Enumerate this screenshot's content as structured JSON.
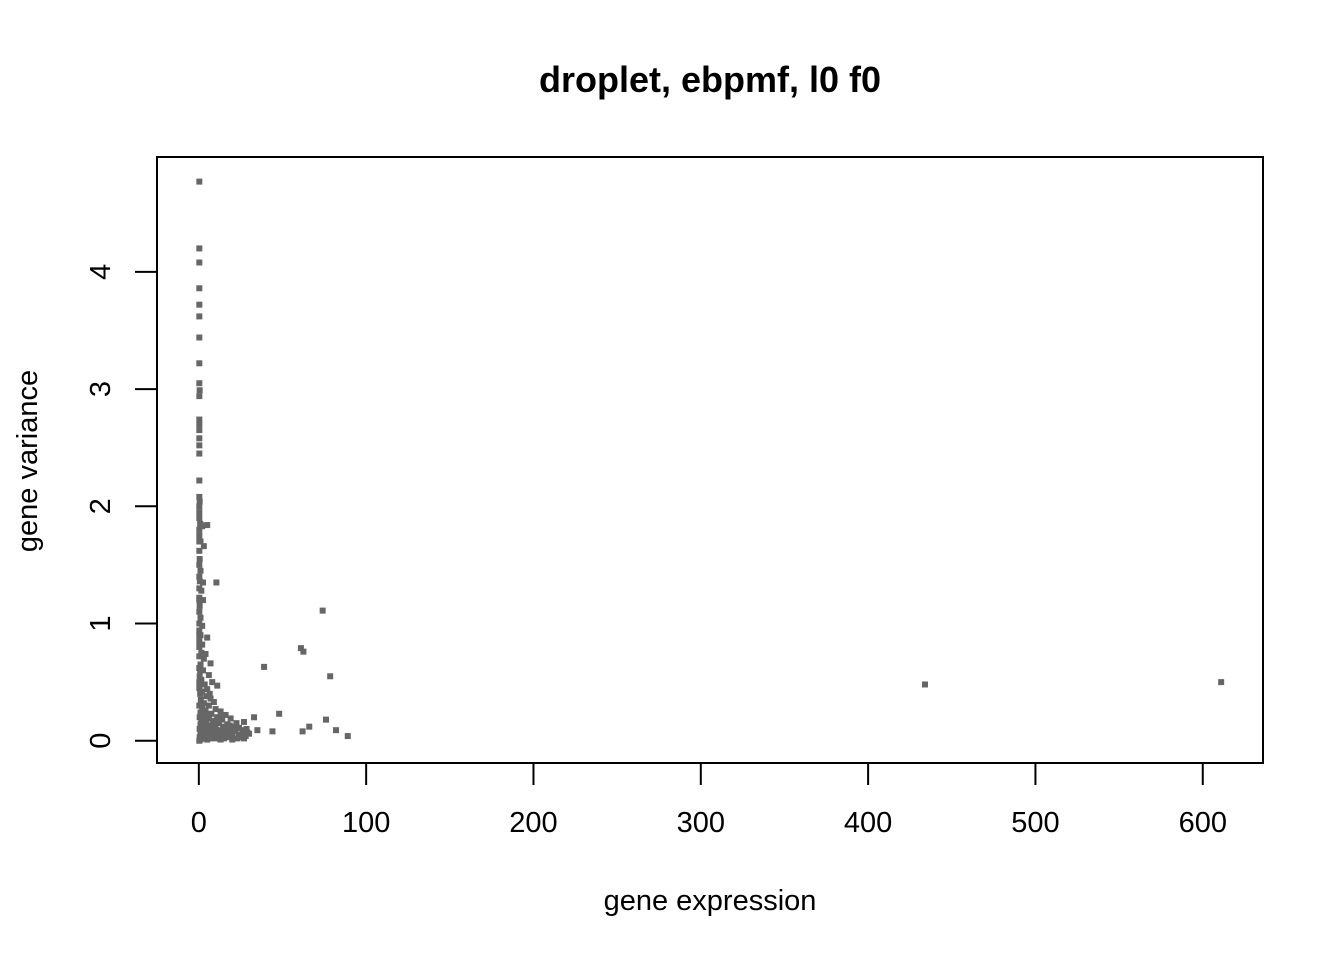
{
  "chart_data": {
    "type": "scatter",
    "title": "droplet, ebpmf, l0 f0",
    "xlabel": "gene expression",
    "ylabel": "gene variance",
    "xlim": [
      -25,
      636
    ],
    "ylim": [
      -0.19,
      4.98
    ],
    "xticks": [
      0,
      100,
      200,
      300,
      400,
      500,
      600
    ],
    "xtick_labels": [
      "0",
      "100",
      "200",
      "300",
      "400",
      "500",
      "600"
    ],
    "yticks": [
      0,
      1,
      2,
      3,
      4
    ],
    "ytick_labels": [
      "0",
      "1",
      "2",
      "3",
      "4"
    ],
    "grid": false,
    "point_color": "#666666",
    "points": [
      [
        0.3,
        4.77
      ],
      [
        0.3,
        4.2
      ],
      [
        0.3,
        4.08
      ],
      [
        0.3,
        3.86
      ],
      [
        0.3,
        3.72
      ],
      [
        0.3,
        3.62
      ],
      [
        0.3,
        3.44
      ],
      [
        0.3,
        3.22
      ],
      [
        0.3,
        3.05
      ],
      [
        0.5,
        2.99
      ],
      [
        0.3,
        2.94
      ],
      [
        0.3,
        2.74
      ],
      [
        0.3,
        2.7
      ],
      [
        0.3,
        2.65
      ],
      [
        0.3,
        2.58
      ],
      [
        0.3,
        2.52
      ],
      [
        0.3,
        2.45
      ],
      [
        0.3,
        2.22
      ],
      [
        0.3,
        2.08
      ],
      [
        0.5,
        2.04
      ],
      [
        0.3,
        2.0
      ],
      [
        0.3,
        1.95
      ],
      [
        0.3,
        1.9
      ],
      [
        0.8,
        1.85
      ],
      [
        1.2,
        1.84
      ],
      [
        2.0,
        1.83
      ],
      [
        5.0,
        1.84
      ],
      [
        0.3,
        1.8
      ],
      [
        0.3,
        1.75
      ],
      [
        0.3,
        1.7
      ],
      [
        1.0,
        1.7
      ],
      [
        3.0,
        1.66
      ],
      [
        0.3,
        1.62
      ],
      [
        0.5,
        1.55
      ],
      [
        0.3,
        1.5
      ],
      [
        1.0,
        1.45
      ],
      [
        0.3,
        1.4
      ],
      [
        0.6,
        1.36
      ],
      [
        2.5,
        1.35
      ],
      [
        10.5,
        1.35
      ],
      [
        0.3,
        1.3
      ],
      [
        1.5,
        1.28
      ],
      [
        0.3,
        1.22
      ],
      [
        2.5,
        1.2
      ],
      [
        0.5,
        1.15
      ],
      [
        0.3,
        1.1
      ],
      [
        1.0,
        1.05
      ],
      [
        0.3,
        1.0
      ],
      [
        2.0,
        0.98
      ],
      [
        0.3,
        0.94
      ],
      [
        1.0,
        0.9
      ],
      [
        5.0,
        0.88
      ],
      [
        0.3,
        0.85
      ],
      [
        2.0,
        0.82
      ],
      [
        0.3,
        0.8
      ],
      [
        1.5,
        0.75
      ],
      [
        4.0,
        0.74
      ],
      [
        0.3,
        0.72
      ],
      [
        3.0,
        0.7
      ],
      [
        7.0,
        0.66
      ],
      [
        1.0,
        0.65
      ],
      [
        0.3,
        0.62
      ],
      [
        2.5,
        0.6
      ],
      [
        6.0,
        0.56
      ],
      [
        0.5,
        0.55
      ],
      [
        1.5,
        0.52
      ],
      [
        8.0,
        0.5
      ],
      [
        3.5,
        0.48
      ],
      [
        11.0,
        0.47
      ],
      [
        0.3,
        0.45
      ],
      [
        5.0,
        0.44
      ],
      [
        2.0,
        0.42
      ],
      [
        0.8,
        0.4
      ],
      [
        4.5,
        0.38
      ],
      [
        7.0,
        0.36
      ],
      [
        1.2,
        0.35
      ],
      [
        9.0,
        0.33
      ],
      [
        3.0,
        0.32
      ],
      [
        0.3,
        0.3
      ],
      [
        6.0,
        0.3
      ],
      [
        2.0,
        0.28
      ],
      [
        10.0,
        0.27
      ],
      [
        4.0,
        0.26
      ],
      [
        13.0,
        0.25
      ],
      [
        1.0,
        0.24
      ],
      [
        7.5,
        0.23
      ],
      [
        16.0,
        0.22
      ],
      [
        3.0,
        0.21
      ],
      [
        11.0,
        0.2
      ],
      [
        0.5,
        0.2
      ],
      [
        6.0,
        0.19
      ],
      [
        19.0,
        0.19
      ],
      [
        14.0,
        0.18
      ],
      [
        2.0,
        0.18
      ],
      [
        9.0,
        0.17
      ],
      [
        27.0,
        0.16
      ],
      [
        4.0,
        0.16
      ],
      [
        12.0,
        0.15
      ],
      [
        17.0,
        0.14
      ],
      [
        1.0,
        0.14
      ],
      [
        7.0,
        0.13
      ],
      [
        21.0,
        0.12
      ],
      [
        3.0,
        0.12
      ],
      [
        15.0,
        0.12
      ],
      [
        24.0,
        0.11
      ],
      [
        10.0,
        0.11
      ],
      [
        0.5,
        0.1
      ],
      [
        5.0,
        0.1
      ],
      [
        18.0,
        0.1
      ],
      [
        26.0,
        0.09
      ],
      [
        13.0,
        0.09
      ],
      [
        2.0,
        0.08
      ],
      [
        8.0,
        0.08
      ],
      [
        22.0,
        0.08
      ],
      [
        16.0,
        0.07
      ],
      [
        29.0,
        0.07
      ],
      [
        4.0,
        0.07
      ],
      [
        11.0,
        0.06
      ],
      [
        19.0,
        0.06
      ],
      [
        1.0,
        0.06
      ],
      [
        24.0,
        0.05
      ],
      [
        6.0,
        0.05
      ],
      [
        14.0,
        0.05
      ],
      [
        28.0,
        0.04
      ],
      [
        9.0,
        0.04
      ],
      [
        20.0,
        0.04
      ],
      [
        3.0,
        0.04
      ],
      [
        12.0,
        0.03
      ],
      [
        25.0,
        0.03
      ],
      [
        17.0,
        0.03
      ],
      [
        0.5,
        0.03
      ],
      [
        7.0,
        0.02
      ],
      [
        23.0,
        0.02
      ],
      [
        15.0,
        0.02
      ],
      [
        2.0,
        0.02
      ],
      [
        10.0,
        0.02
      ],
      [
        27.0,
        0.02
      ],
      [
        0.3,
        0.0
      ],
      [
        1.0,
        0.01
      ],
      [
        5.0,
        0.01
      ],
      [
        13.0,
        0.01
      ],
      [
        20.0,
        0.01
      ],
      [
        0.3,
        0.5
      ],
      [
        0.3,
        0.9
      ],
      [
        0.3,
        1.2
      ],
      [
        0.5,
        0.3
      ],
      [
        0.8,
        0.6
      ],
      [
        1.5,
        0.15
      ],
      [
        2.5,
        0.05
      ],
      [
        3.5,
        0.09
      ],
      [
        4.5,
        0.14
      ],
      [
        5.5,
        0.22
      ],
      [
        6.5,
        0.4
      ],
      [
        8.5,
        0.15
      ],
      [
        9.5,
        0.06
      ],
      [
        12.5,
        0.2
      ],
      [
        14.5,
        0.1
      ],
      [
        16.5,
        0.05
      ],
      [
        18.5,
        0.13
      ],
      [
        20.5,
        0.08
      ],
      [
        22.5,
        0.15
      ],
      [
        26.0,
        0.05
      ],
      [
        28.5,
        0.1
      ],
      [
        30.0,
        0.06
      ],
      [
        33.0,
        0.2
      ],
      [
        35.0,
        0.09
      ],
      [
        39.0,
        0.63
      ],
      [
        44.0,
        0.08
      ],
      [
        48.0,
        0.23
      ],
      [
        61.0,
        0.79
      ],
      [
        62.5,
        0.76
      ],
      [
        62.0,
        0.08
      ],
      [
        66.0,
        0.12
      ],
      [
        74.0,
        1.11
      ],
      [
        76.0,
        0.18
      ],
      [
        78.5,
        0.55
      ],
      [
        82.0,
        0.09
      ],
      [
        89.0,
        0.04
      ],
      [
        434.0,
        0.48
      ],
      [
        611.0,
        0.5
      ]
    ]
  }
}
